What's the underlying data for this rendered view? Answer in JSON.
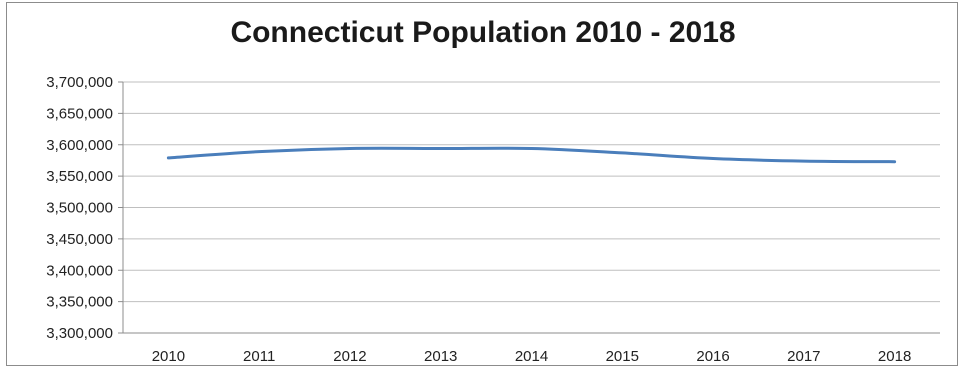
{
  "chart_data": {
    "type": "line",
    "title": "Connecticut Population 2010 - 2018",
    "xlabel": "",
    "ylabel": "",
    "categories": [
      "2010",
      "2011",
      "2012",
      "2013",
      "2014",
      "2015",
      "2016",
      "2017",
      "2018"
    ],
    "series": [
      {
        "values": [
          3579000,
          3589000,
          3594000,
          3594000,
          3594000,
          3587000,
          3578000,
          3574000,
          3573000
        ],
        "color": "#4a7ebb"
      }
    ],
    "ylim": [
      3300000,
      3700000
    ],
    "yticks": [
      "3,300,000",
      "3,350,000",
      "3,400,000",
      "3,450,000",
      "3,500,000",
      "3,550,000",
      "3,600,000",
      "3,650,000",
      "3,700,000"
    ],
    "grid": true,
    "legend": "none"
  }
}
